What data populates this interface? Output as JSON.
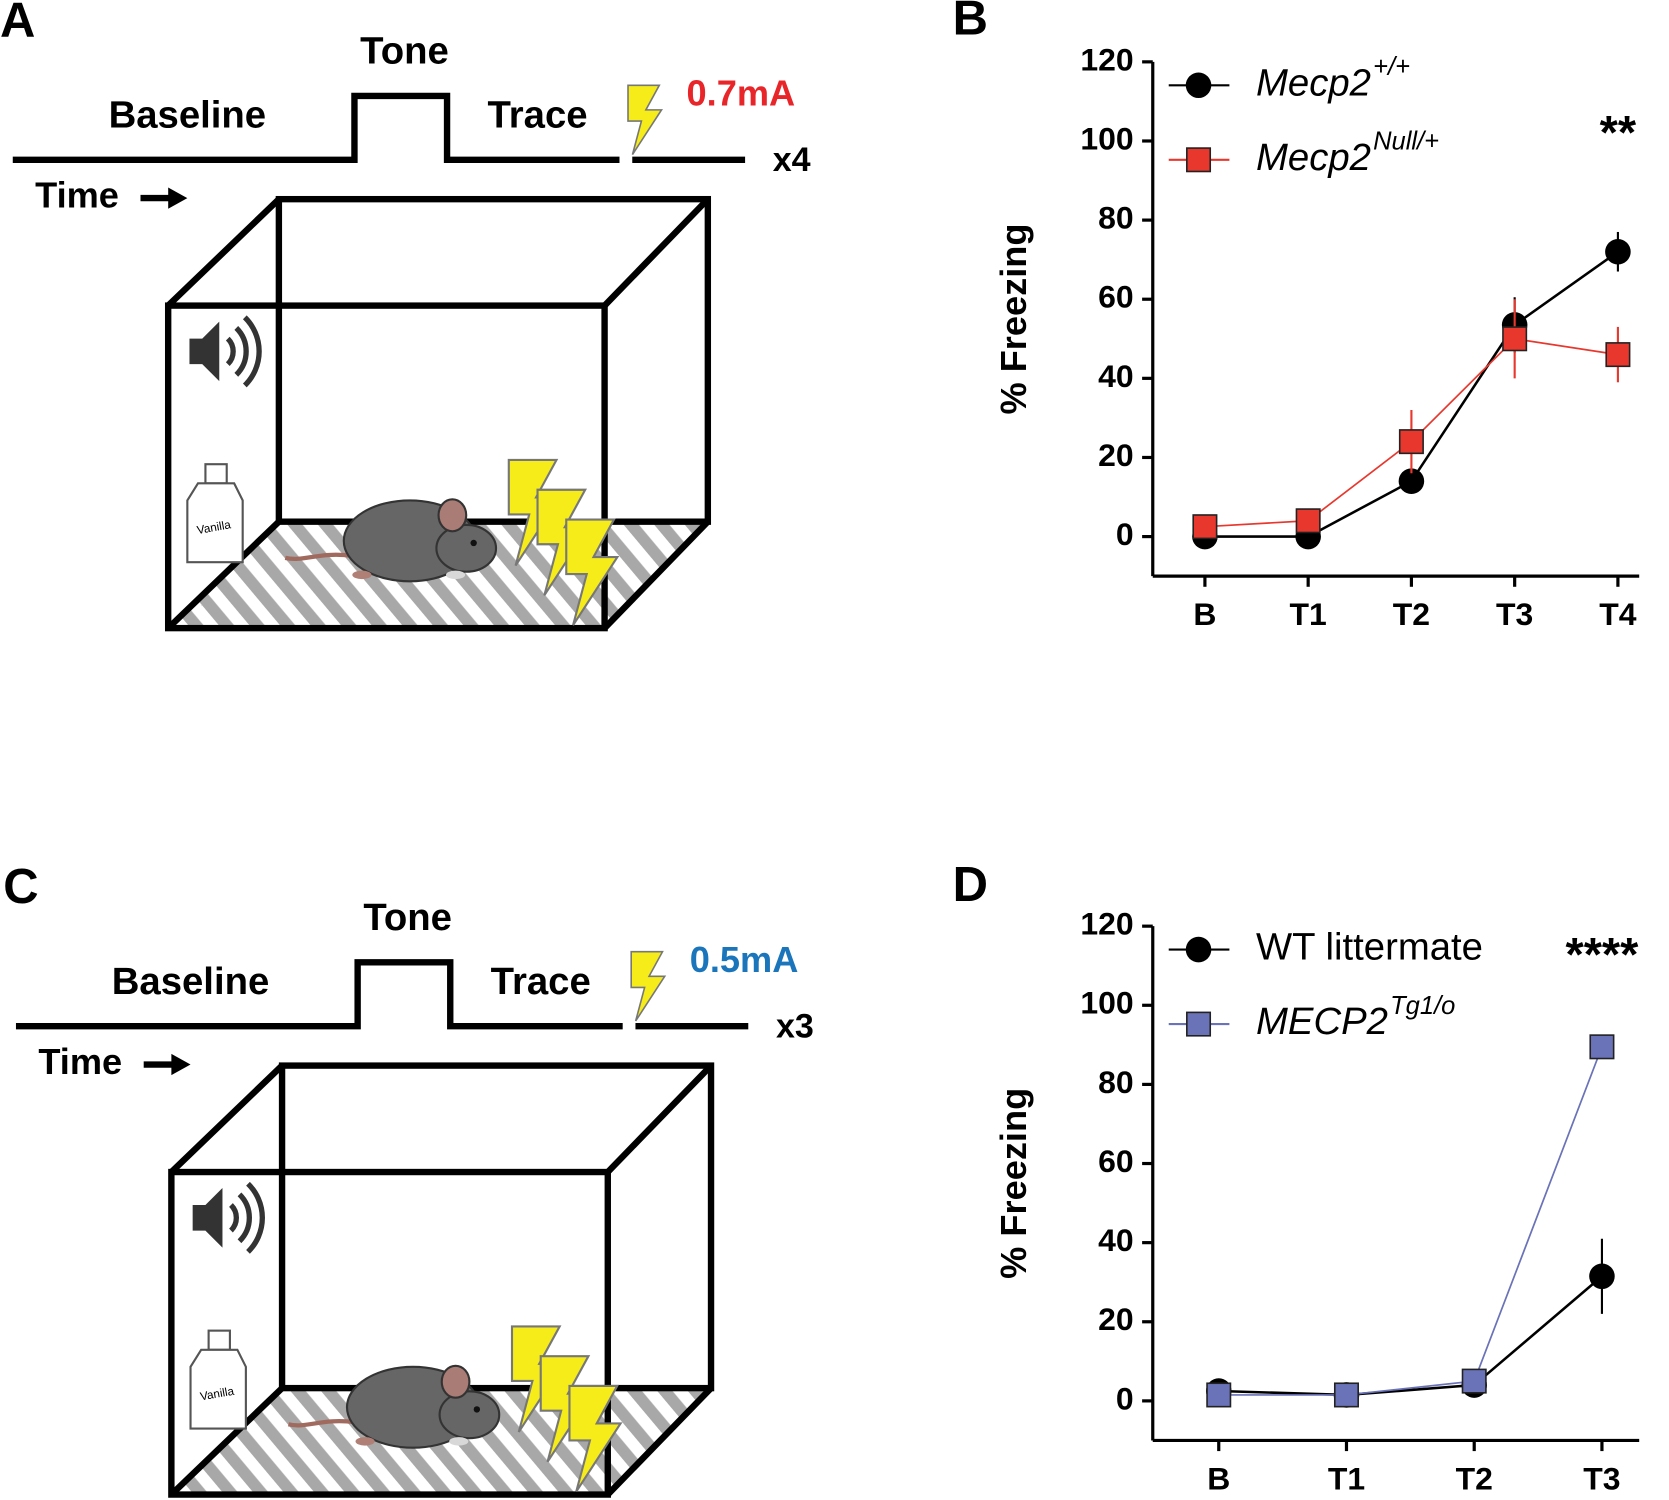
{
  "panels": [
    {
      "label": "A",
      "tone": "Tone",
      "baseline": "Baseline",
      "trace": "Trace",
      "current": "0.7mA",
      "current_color": "#e8262a",
      "repeats": "x4",
      "time": "Time",
      "bottle_label": "Vanilla"
    },
    {
      "label": "C",
      "tone": "Tone",
      "baseline": "Baseline",
      "trace": "Trace",
      "current": "0.5mA",
      "current_color": "#1b75bb",
      "repeats": "x3",
      "time": "Time",
      "bottle_label": "Vanilla"
    }
  ],
  "chart_data": [
    {
      "label": "B",
      "type": "line",
      "ylabel": "% Freezing",
      "annotation": "**",
      "categories": [
        "B",
        "T1",
        "T2",
        "T3",
        "T4"
      ],
      "series": [
        {
          "name": "Mecp2",
          "superscript": "+/+",
          "color": "#000000",
          "line_color": "#000000",
          "marker": "circle",
          "values": [
            0,
            0,
            14,
            53.5,
            72
          ],
          "errors": [
            1,
            1,
            2,
            7,
            5
          ]
        },
        {
          "name": "Mecp2",
          "superscript": "Null/+",
          "color": "#e8382e",
          "line_color": "#e8382e",
          "marker": "square",
          "values": [
            2.5,
            4,
            24,
            50,
            46
          ],
          "errors": [
            1,
            1.5,
            8,
            10,
            7
          ]
        }
      ],
      "ylim": [
        -10,
        120
      ],
      "yticks": [
        0,
        20,
        40,
        60,
        80,
        100,
        120
      ]
    },
    {
      "label": "D",
      "type": "line",
      "ylabel": "% Freezing",
      "annotation": "****",
      "categories": [
        "B",
        "T1",
        "T2",
        "T3"
      ],
      "series": [
        {
          "name": "WT littermate",
          "color": "#000000",
          "line_color": "#000000",
          "marker": "circle",
          "values": [
            2.5,
            1.5,
            4,
            31.5
          ],
          "errors": [
            1,
            0.5,
            1,
            9.5
          ]
        },
        {
          "name": "MECP2",
          "superscript": "Tg1/o",
          "color": "#6a72b8",
          "line_color": "#6a72b8",
          "marker": "square",
          "values": [
            1.5,
            1.5,
            5,
            89.5
          ],
          "errors": [
            0.5,
            0.5,
            1,
            2
          ]
        }
      ],
      "ylim": [
        -10,
        120
      ],
      "yticks": [
        0,
        20,
        40,
        60,
        80,
        100,
        120
      ]
    }
  ]
}
